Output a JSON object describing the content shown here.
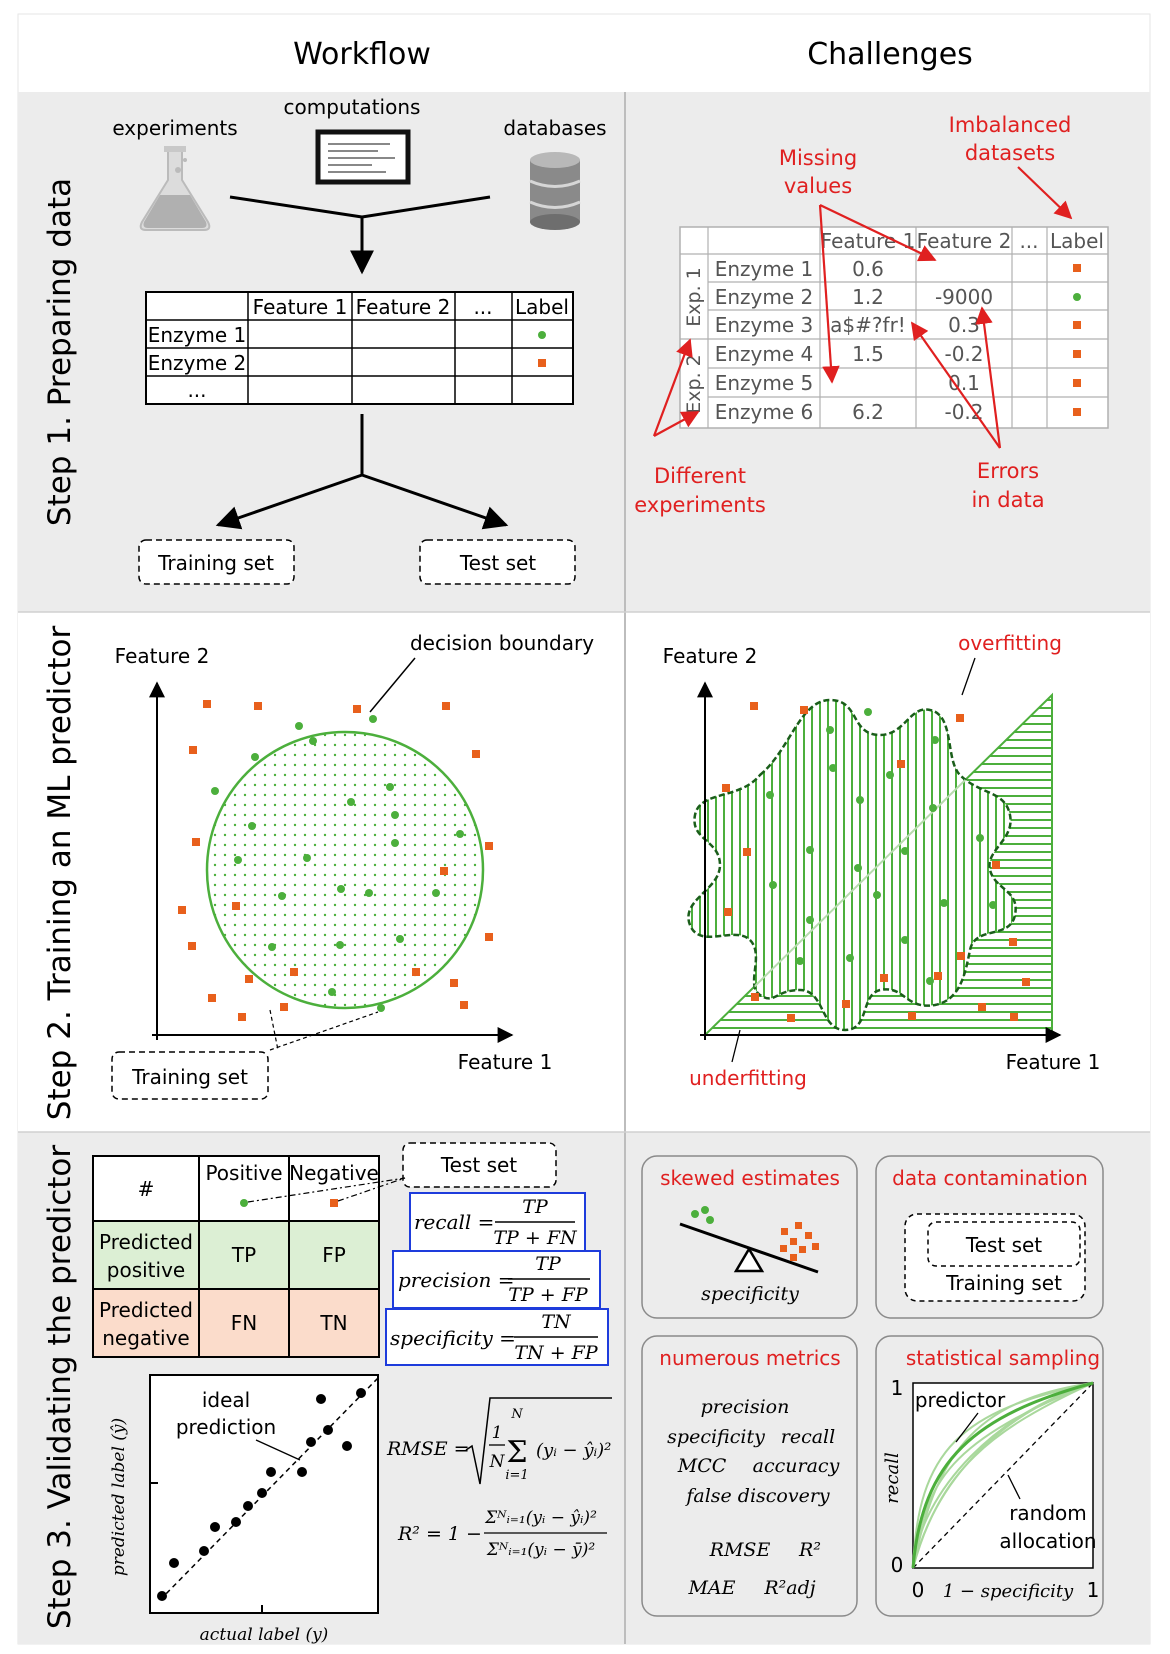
{
  "header": {
    "workflow": "Workflow",
    "challenges": "Challenges"
  },
  "steps": {
    "step1": "Step 1. Preparing data",
    "step2": "Step 2. Training an ML predictor",
    "step3": "Step 3. Validating the predictor"
  },
  "step1": {
    "sources": {
      "experiments": "experiments",
      "computations": "computations",
      "databases": "databases"
    },
    "table": {
      "headers": [
        "",
        "Feature 1",
        "Feature 2",
        "...",
        "Label"
      ],
      "rows": [
        "Enzyme 1",
        "Enzyme 2",
        "..."
      ]
    },
    "training_set": "Training set",
    "test_set": "Test set",
    "challenge_table": {
      "headers": [
        "Feature 1",
        "Feature 2",
        "...",
        "Label"
      ],
      "groups": [
        "Exp. 1",
        "Exp. 2"
      ],
      "rows": [
        {
          "name": "Enzyme 1",
          "f1": "0.6",
          "f2": ""
        },
        {
          "name": "Enzyme 2",
          "f1": "1.2",
          "f2": "-9000"
        },
        {
          "name": "Enzyme 3",
          "f1": "a$#?fr!",
          "f2": "0.3"
        },
        {
          "name": "Enzyme 4",
          "f1": "1.5",
          "f2": "-0.2"
        },
        {
          "name": "Enzyme 5",
          "f1": "",
          "f2": "0.1"
        },
        {
          "name": "Enzyme 6",
          "f1": "6.2",
          "f2": "-0.2"
        }
      ]
    },
    "annotations": {
      "missing": [
        "Missing",
        "values"
      ],
      "imbalanced": [
        "Imbalanced",
        "datasets"
      ],
      "different": [
        "Different",
        "experiments"
      ],
      "errors": [
        "Errors",
        "in data"
      ]
    }
  },
  "step2": {
    "feature1": "Feature 1",
    "feature2": "Feature 2",
    "decision_boundary": "decision boundary",
    "training_set": "Training set",
    "overfitting": "overfitting",
    "underfitting": "underfitting"
  },
  "step3": {
    "confusion": {
      "hash": "#",
      "positive": "Positive",
      "negative": "Negative",
      "pred_pos": [
        "Predicted",
        "positive"
      ],
      "pred_neg": [
        "Predicted",
        "negative"
      ],
      "tp": "TP",
      "fp": "FP",
      "fn": "FN",
      "tn": "TN"
    },
    "test_set": "Test set",
    "recall": {
      "lhs": "recall =",
      "num": "TP",
      "den": "TP + FN"
    },
    "precision": {
      "lhs": "precision =",
      "num": "TP",
      "den": "TP + FP"
    },
    "specificity": {
      "lhs": "specificity =",
      "num": "TN",
      "den": "TN + FP"
    },
    "regression": {
      "ideal": [
        "ideal",
        "prediction"
      ],
      "ylabel": "predicted label (ŷ)",
      "xlabel": "actual label (y)"
    },
    "rmse": {
      "lhs": "RMSE =",
      "frac_n": "1",
      "frac_d": "N",
      "sum_top": "N",
      "sum_bot": "i=1",
      "term": "(yᵢ − ŷᵢ)²"
    },
    "r2": {
      "lhs": "R² = 1 −",
      "num": "Σᴺᵢ₌₁(yᵢ − ŷᵢ)²",
      "den": "Σᴺᵢ₌₁(yᵢ − ȳ)²"
    },
    "skewed": {
      "title": "skewed estimates",
      "label": "specificity"
    },
    "contamination": {
      "title": "data contamination",
      "test": "Test set",
      "training": "Training set"
    },
    "metrics": {
      "title": "numerous metrics",
      "items": [
        "precision",
        "specificity",
        "recall",
        "MCC",
        "accuracy",
        "false discovery",
        "RMSE",
        "R²",
        "MAE",
        "R²adj"
      ]
    },
    "sampling": {
      "title": "statistical sampling",
      "predictor": "predictor",
      "random": [
        "random",
        "allocation"
      ],
      "ylabel": "recall",
      "xlabel": "1 − specificity",
      "tick0": "0",
      "tick1": "1",
      "ytick0": "0",
      "ytick1": "1"
    }
  },
  "colors": {
    "red": "#e02020",
    "green": "#4caf3c",
    "orange": "#e8601c",
    "blue": "#1e3cdc",
    "panel": "#ececec",
    "green_cell": "#dcefd4",
    "orange_cell": "#fbdccb"
  }
}
